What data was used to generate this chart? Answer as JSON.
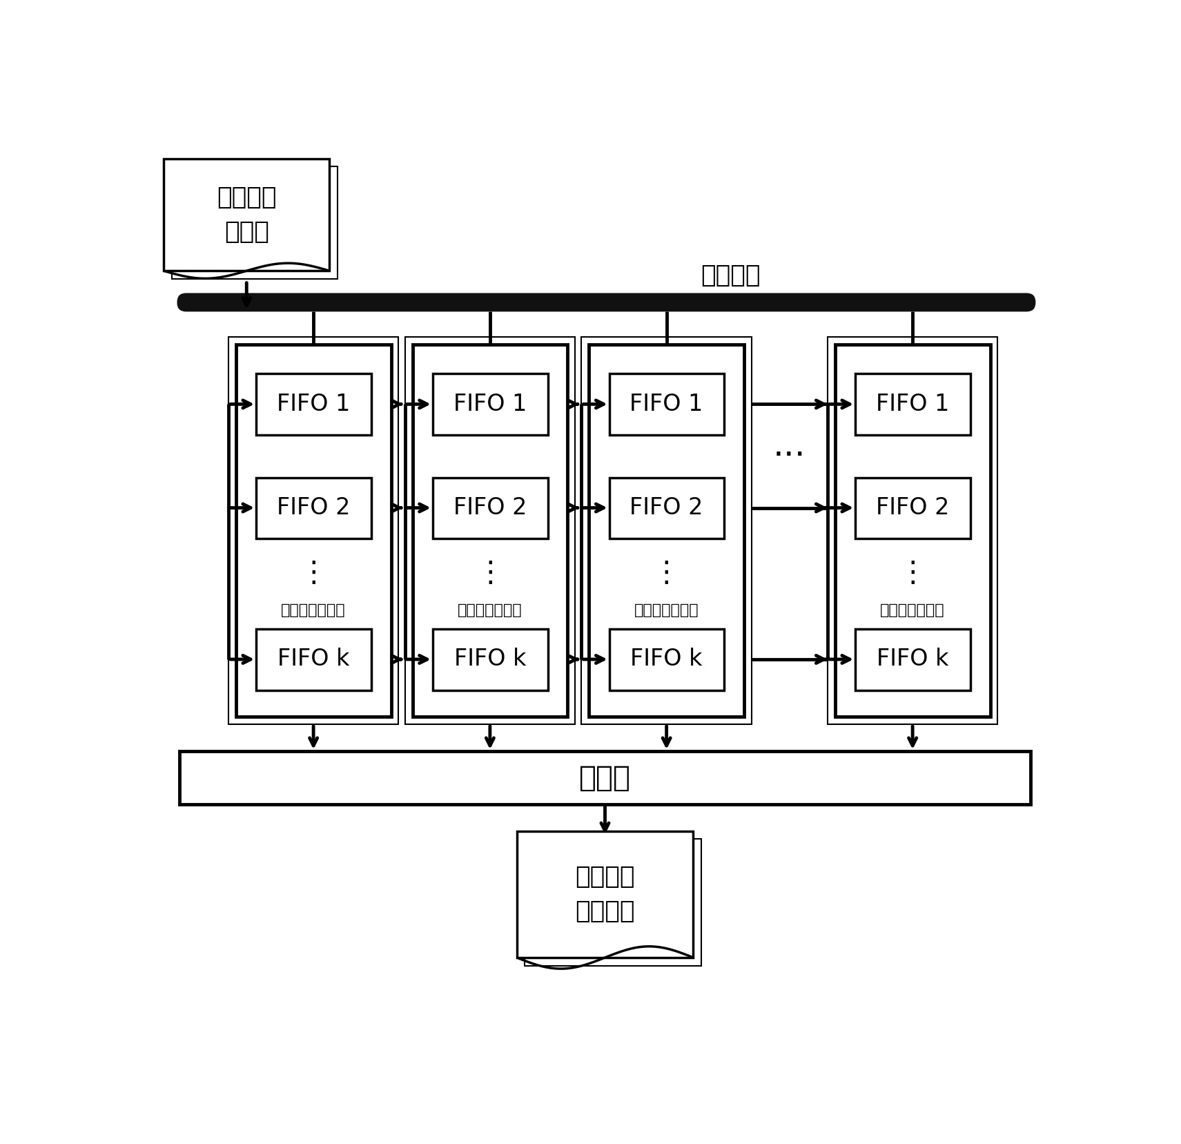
{
  "bg_color": "#ffffff",
  "line_color": "#000000",
  "fig_width": 17.11,
  "fig_height": 16.57,
  "bus_label": "信道总线",
  "input_label": "电信号脉\n冲序列",
  "output_label": "方位信息\n脉冲序列",
  "mux_label": "多工器",
  "delay_label": "延迟线解码模块",
  "fifo_labels": [
    "FIFO 1",
    "FIFO 2",
    "FIFO k"
  ],
  "between_dots": "···"
}
